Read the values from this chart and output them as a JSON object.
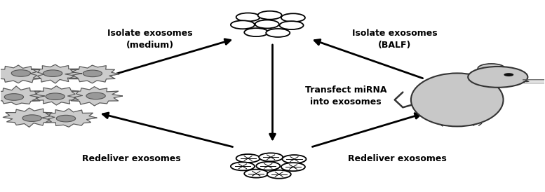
{
  "bg_color": "#ffffff",
  "fig_width": 7.77,
  "fig_height": 2.74,
  "dpi": 100,
  "arrow_color": "#000000",
  "text_color": "#000000",
  "label_top_left": "Isolate exosomes\n(medium)",
  "label_top_right": "Isolate exosomes\n(BALF)",
  "label_center": "Transfect miRNA\ninto exosomes",
  "label_bottom_left": "Redeliver exosomes",
  "label_bottom_right": "Redeliver exosomes",
  "arrow_lw": 2.0,
  "arrowhead_size": 14,
  "cell_color": "#cccccc",
  "cell_edge": "#555555",
  "nucleus_color": "#999999",
  "mouse_color": "#c8c8c8",
  "mouse_edge": "#333333"
}
